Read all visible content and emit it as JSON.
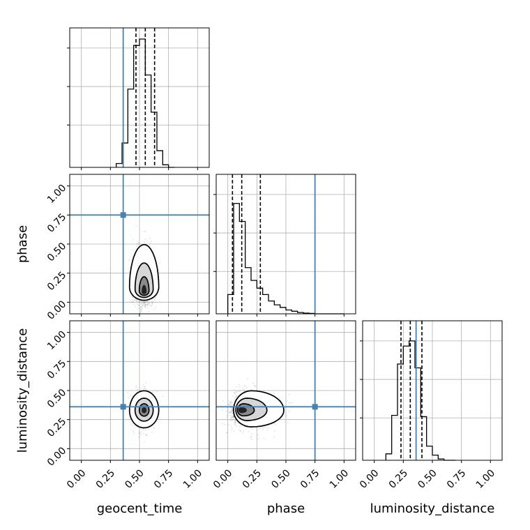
{
  "chart_data": {
    "type": "corner",
    "parameters": [
      "geocent_time",
      "phase",
      "luminosity_distance"
    ],
    "axis_range": [
      -0.1,
      1.1
    ],
    "ticks": [
      0.0,
      0.25,
      0.5,
      0.75,
      1.0
    ],
    "tick_labels": [
      "0.00",
      "0.25",
      "0.50",
      "0.75",
      "1.00"
    ],
    "grid": true,
    "colors": {
      "truth": "#4682b4",
      "hist": "#000000",
      "scatter": "#555555"
    },
    "truths": {
      "geocent_time": 0.36,
      "phase": 0.75,
      "luminosity_distance": 0.36
    },
    "histograms": [
      {
        "parameter": "geocent_time",
        "bin_edges": [
          0.3,
          0.35,
          0.4,
          0.45,
          0.5,
          0.55,
          0.6,
          0.65,
          0.7,
          0.75,
          0.8
        ],
        "counts": [
          0.03,
          0.19,
          0.61,
          0.95,
          1.0,
          0.72,
          0.43,
          0.13,
          0.02,
          0.0
        ],
        "quantiles": [
          0.47,
          0.55,
          0.63
        ]
      },
      {
        "parameter": "phase",
        "bin_edges": [
          0.0,
          0.05,
          0.1,
          0.15,
          0.2,
          0.25,
          0.3,
          0.35,
          0.4,
          0.45,
          0.5,
          0.55,
          0.6,
          0.65,
          0.7,
          0.75,
          0.8,
          0.85,
          0.9,
          0.95,
          1.0
        ],
        "counts": [
          0.15,
          0.86,
          0.72,
          0.36,
          0.26,
          0.2,
          0.15,
          0.1,
          0.07,
          0.05,
          0.03,
          0.02,
          0.01,
          0.005,
          0.003,
          0.0,
          0.0,
          0.0,
          0.0,
          0.0
        ],
        "quantiles": [
          0.04,
          0.12,
          0.28
        ]
      },
      {
        "parameter": "luminosity_distance",
        "bin_edges": [
          0.1,
          0.15,
          0.2,
          0.25,
          0.3,
          0.35,
          0.4,
          0.45,
          0.5,
          0.55,
          0.6,
          0.65,
          0.7
        ],
        "counts": [
          0.05,
          0.35,
          0.75,
          0.89,
          0.93,
          0.72,
          0.34,
          0.11,
          0.04,
          0.01,
          0.0,
          0.0
        ],
        "quantiles": [
          0.23,
          0.31,
          0.41
        ]
      }
    ],
    "densities": [
      {
        "x": "geocent_time",
        "y": "phase",
        "center": [
          0.54,
          0.08
        ],
        "spread": [
          0.06,
          0.12
        ]
      },
      {
        "x": "geocent_time",
        "y": "luminosity_distance",
        "center": [
          0.54,
          0.33
        ],
        "spread": [
          0.06,
          0.08
        ]
      },
      {
        "x": "phase",
        "y": "luminosity_distance",
        "center": [
          0.1,
          0.33
        ],
        "spread": [
          0.14,
          0.08
        ]
      }
    ]
  }
}
